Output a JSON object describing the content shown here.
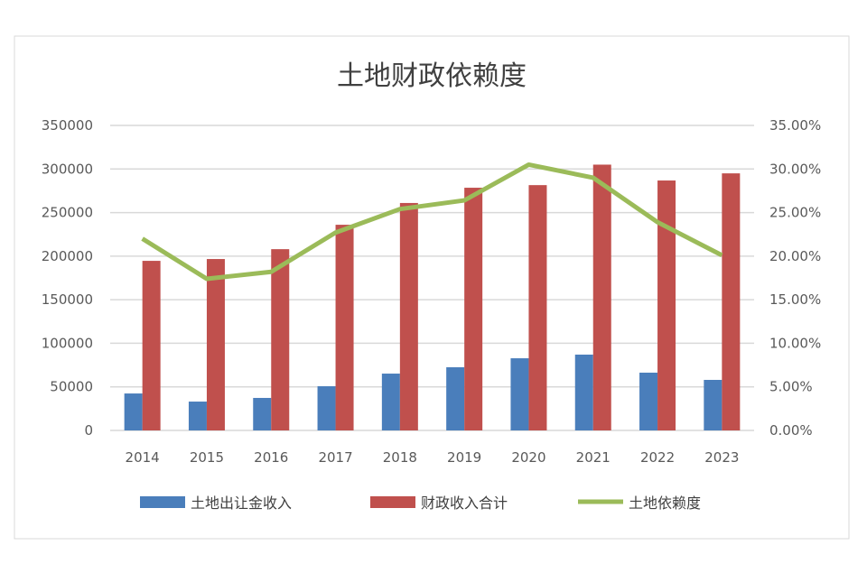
{
  "chart_data": {
    "type": "bar",
    "title": "土地财政依赖度",
    "categories": [
      "2014",
      "2015",
      "2016",
      "2017",
      "2018",
      "2019",
      "2020",
      "2021",
      "2022",
      "2023"
    ],
    "series": [
      {
        "name": "土地出让金收入",
        "type": "bar",
        "axis": "left",
        "color": "#4a7ebb",
        "values": [
          42400,
          33100,
          37300,
          50700,
          65200,
          72500,
          82800,
          87000,
          66300,
          58000
        ]
      },
      {
        "name": "财政收入合计",
        "type": "bar",
        "axis": "left",
        "color": "#c0504d",
        "values": [
          194600,
          196700,
          208000,
          236000,
          261000,
          278500,
          281500,
          305000,
          286800,
          295000
        ]
      },
      {
        "name": "土地依赖度",
        "type": "line",
        "axis": "right",
        "color": "#9bbb59",
        "values": [
          0.22,
          0.174,
          0.182,
          0.227,
          0.254,
          0.264,
          0.305,
          0.29,
          0.239,
          0.201
        ]
      }
    ],
    "ylim": [
      0,
      350000
    ],
    "yticks": [
      "0",
      "50000",
      "100000",
      "150000",
      "200000",
      "250000",
      "300000",
      "350000"
    ],
    "y2lim": [
      0,
      0.35
    ],
    "y2ticks": [
      "0.00%",
      "5.00%",
      "10.00%",
      "15.00%",
      "20.00%",
      "25.00%",
      "30.00%",
      "35.00%"
    ],
    "grid": true,
    "legend_position": "bottom"
  }
}
